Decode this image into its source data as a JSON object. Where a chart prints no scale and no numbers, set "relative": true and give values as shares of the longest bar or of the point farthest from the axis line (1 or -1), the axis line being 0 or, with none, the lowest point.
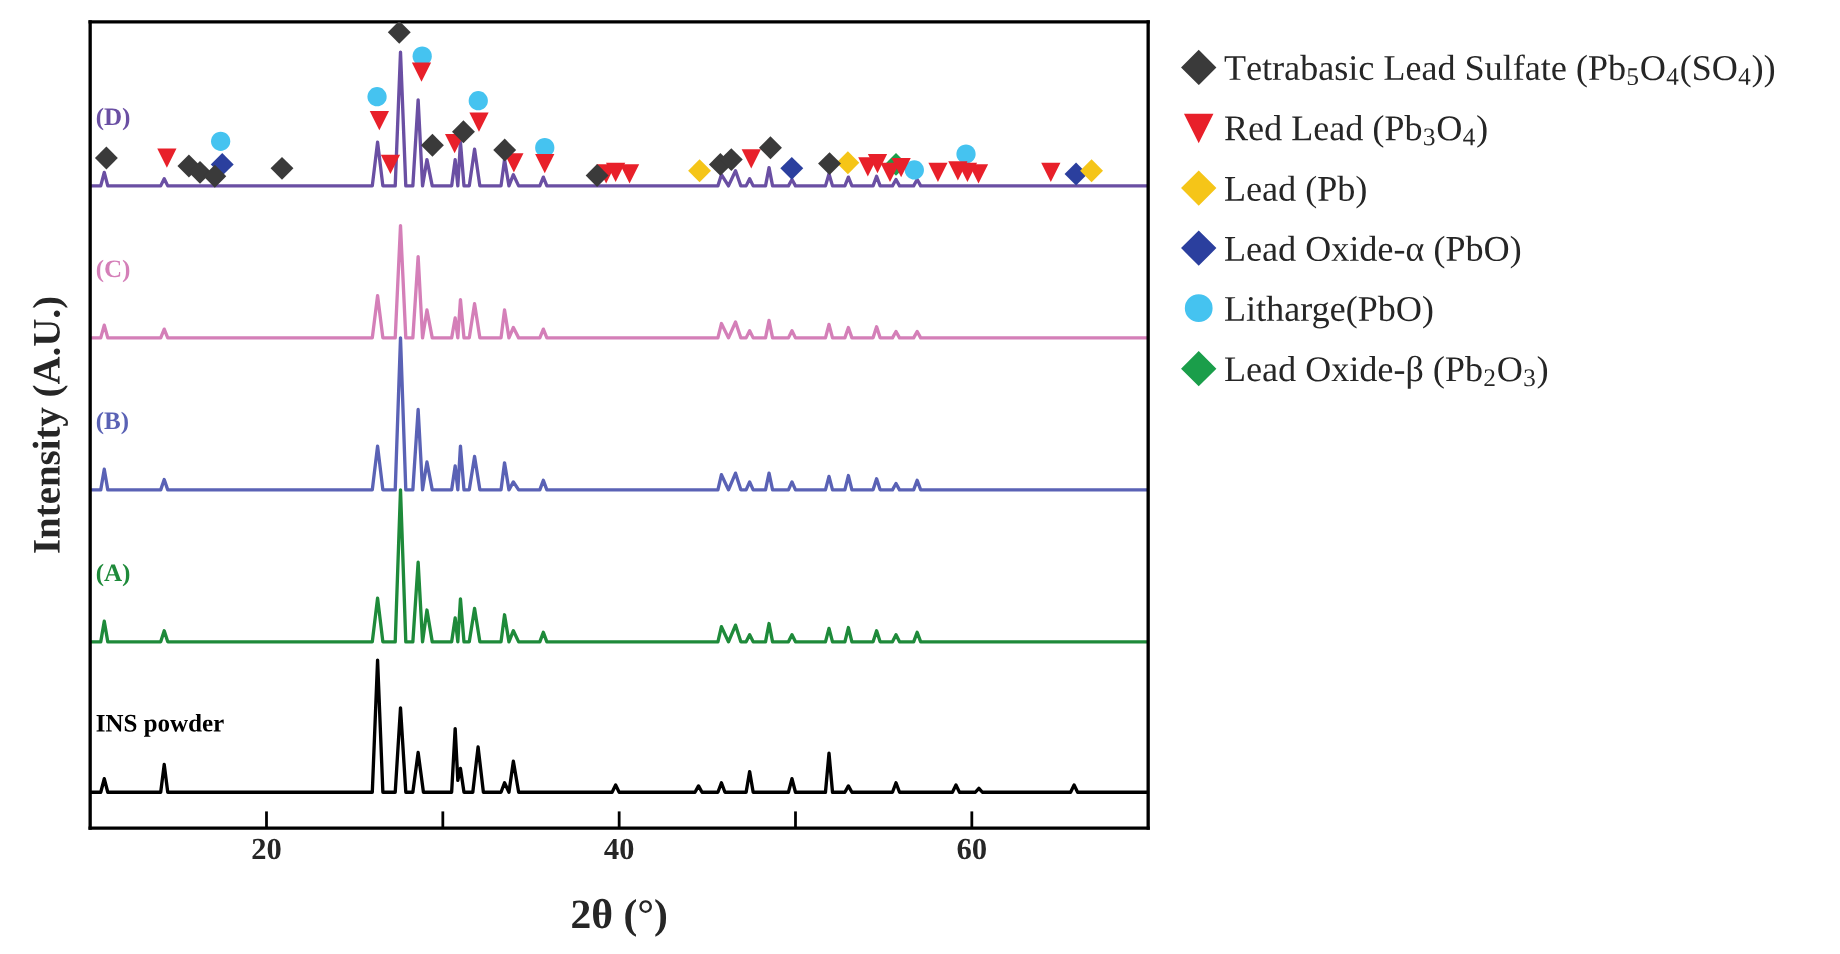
{
  "chart_data": {
    "type": "line",
    "relative": true,
    "xlabel": "2θ (°)",
    "ylabel": "Intensity (A.U.)",
    "xlim": [
      10,
      70
    ],
    "xticks": [
      20,
      {
        "value": 30,
        "label": null
      },
      40,
      {
        "value": 50,
        "label": null
      },
      60
    ],
    "legend": "right",
    "grid": false,
    "x": [
      10,
      10.6,
      10.8,
      11.0,
      14.0,
      14.2,
      14.4,
      26.0,
      26.3,
      26.6,
      27.3,
      27.6,
      27.9,
      28.3,
      28.6,
      28.85,
      29.1,
      29.4,
      30.5,
      30.7,
      30.85,
      31.0,
      31.2,
      31.5,
      31.8,
      32.1,
      33.3,
      33.5,
      33.75,
      34.0,
      34.3,
      35.5,
      35.7,
      35.9,
      45.6,
      45.8,
      46.2,
      46.6,
      46.9,
      47.2,
      47.4,
      47.6,
      48.3,
      48.5,
      48.7,
      49.6,
      49.8,
      50.0,
      51.7,
      51.9,
      52.1,
      52.8,
      53.0,
      53.2,
      54.4,
      54.6,
      54.8,
      55.5,
      55.7,
      55.9,
      56.7,
      56.9,
      57.1,
      70
    ],
    "series": [
      {
        "name": "(D)",
        "color": "#6a4fa3",
        "values": [
          0.807,
          0.807,
          0.824,
          0.807,
          0.807,
          0.816,
          0.807,
          0.807,
          0.862,
          0.807,
          0.807,
          0.975,
          0.807,
          0.807,
          0.915,
          0.807,
          0.84,
          0.807,
          0.807,
          0.84,
          0.807,
          0.862,
          0.807,
          0.807,
          0.853,
          0.807,
          0.807,
          0.84,
          0.807,
          0.821,
          0.807,
          0.807,
          0.818,
          0.807,
          0.807,
          0.821,
          0.807,
          0.826,
          0.807,
          0.807,
          0.816,
          0.807,
          0.807,
          0.83,
          0.807,
          0.807,
          0.815,
          0.807,
          0.807,
          0.822,
          0.807,
          0.807,
          0.818,
          0.807,
          0.807,
          0.819,
          0.807,
          0.807,
          0.815,
          0.807,
          0.807,
          0.815,
          0.807,
          0.807
        ]
      },
      {
        "name": "(C)",
        "color": "#d47fb8",
        "values": [
          0.616,
          0.616,
          0.632,
          0.616,
          0.616,
          0.627,
          0.616,
          0.616,
          0.669,
          0.616,
          0.616,
          0.757,
          0.616,
          0.616,
          0.718,
          0.616,
          0.651,
          0.616,
          0.616,
          0.641,
          0.616,
          0.664,
          0.616,
          0.616,
          0.659,
          0.616,
          0.616,
          0.651,
          0.616,
          0.629,
          0.616,
          0.616,
          0.627,
          0.616,
          0.616,
          0.634,
          0.616,
          0.636,
          0.616,
          0.616,
          0.625,
          0.616,
          0.616,
          0.638,
          0.616,
          0.616,
          0.625,
          0.616,
          0.616,
          0.633,
          0.616,
          0.616,
          0.629,
          0.616,
          0.616,
          0.63,
          0.616,
          0.616,
          0.624,
          0.616,
          0.616,
          0.624,
          0.616,
          0.616
        ]
      },
      {
        "name": "(B)",
        "color": "#5a62b5",
        "values": [
          0.425,
          0.425,
          0.451,
          0.425,
          0.425,
          0.438,
          0.425,
          0.425,
          0.48,
          0.425,
          0.425,
          0.616,
          0.425,
          0.425,
          0.526,
          0.425,
          0.46,
          0.425,
          0.425,
          0.455,
          0.425,
          0.48,
          0.425,
          0.425,
          0.467,
          0.425,
          0.425,
          0.459,
          0.425,
          0.435,
          0.425,
          0.425,
          0.437,
          0.425,
          0.425,
          0.444,
          0.425,
          0.446,
          0.425,
          0.425,
          0.435,
          0.425,
          0.425,
          0.446,
          0.425,
          0.425,
          0.435,
          0.425,
          0.425,
          0.442,
          0.425,
          0.425,
          0.443,
          0.425,
          0.425,
          0.439,
          0.425,
          0.425,
          0.433,
          0.425,
          0.425,
          0.437,
          0.425,
          0.425
        ]
      },
      {
        "name": "(A)",
        "color": "#1e8a3a",
        "values": [
          0.234,
          0.234,
          0.26,
          0.234,
          0.234,
          0.248,
          0.234,
          0.234,
          0.289,
          0.234,
          0.234,
          0.425,
          0.234,
          0.234,
          0.334,
          0.234,
          0.274,
          0.234,
          0.234,
          0.264,
          0.234,
          0.288,
          0.234,
          0.234,
          0.276,
          0.234,
          0.234,
          0.268,
          0.234,
          0.248,
          0.234,
          0.234,
          0.246,
          0.234,
          0.234,
          0.253,
          0.234,
          0.255,
          0.234,
          0.234,
          0.243,
          0.234,
          0.234,
          0.257,
          0.234,
          0.234,
          0.243,
          0.234,
          0.234,
          0.251,
          0.234,
          0.234,
          0.252,
          0.234,
          0.234,
          0.248,
          0.234,
          0.234,
          0.243,
          0.234,
          0.234,
          0.246,
          0.234,
          0.234
        ]
      },
      {
        "name": "INS powder",
        "color": "#000000",
        "x": [
          10,
          10.6,
          10.8,
          11,
          14,
          14.2,
          14.4,
          26,
          26.3,
          26.6,
          27.3,
          27.6,
          27.9,
          28.3,
          28.6,
          28.9,
          30.5,
          30.7,
          30.85,
          31,
          31.2,
          31.7,
          32,
          32.3,
          33.3,
          33.5,
          33.75,
          34,
          34.3,
          39.6,
          39.8,
          40,
          44.3,
          44.5,
          44.7,
          45.6,
          45.8,
          46,
          47.2,
          47.4,
          47.6,
          49.6,
          49.8,
          50,
          51.7,
          51.9,
          52.1,
          52.8,
          53,
          53.2,
          55.5,
          55.7,
          55.9,
          58.9,
          59.1,
          59.3,
          60.2,
          60.4,
          60.6,
          65.6,
          65.8,
          66,
          70
        ],
        "values": [
          0.045,
          0.045,
          0.062,
          0.045,
          0.045,
          0.08,
          0.045,
          0.045,
          0.211,
          0.045,
          0.045,
          0.151,
          0.045,
          0.045,
          0.095,
          0.045,
          0.045,
          0.125,
          0.06,
          0.075,
          0.045,
          0.045,
          0.102,
          0.045,
          0.045,
          0.057,
          0.045,
          0.084,
          0.045,
          0.045,
          0.054,
          0.045,
          0.045,
          0.053,
          0.045,
          0.045,
          0.057,
          0.045,
          0.045,
          0.071,
          0.045,
          0.045,
          0.062,
          0.045,
          0.045,
          0.094,
          0.045,
          0.045,
          0.053,
          0.045,
          0.045,
          0.057,
          0.045,
          0.045,
          0.054,
          0.045,
          0.045,
          0.05,
          0.045,
          0.045,
          0.054,
          0.045,
          0.045
        ]
      },
      {
        "name": "Tetrabasic Lead Sulfate (Pb$_{5}$O$_{4}$(SO$_{4}$))",
        "type": "scatter",
        "marker": "diamond",
        "color": "#3a3a3a",
        "x": [
          10.92,
          15.6,
          16.23,
          17.07,
          20.88,
          27.53,
          29.41,
          31.17,
          33.51,
          38.75,
          45.74,
          46.36,
          48.58,
          51.93
        ],
        "values": [
          0.842,
          0.832,
          0.824,
          0.819,
          0.829,
          1.0,
          0.858,
          0.875,
          0.852,
          0.82,
          0.834,
          0.84,
          0.855,
          0.835
        ]
      },
      {
        "name": "Red Lead (Pb$_{3}$O$_{4}$)",
        "type": "scatter",
        "marker": "triangle",
        "color": "#e8202a",
        "x": [
          14.35,
          26.4,
          27.03,
          28.79,
          30.67,
          32.05,
          34.03,
          35.78,
          39.26,
          39.8,
          40.59,
          47.49,
          54.1,
          54.65,
          55.36,
          55.99,
          58.08,
          59.21,
          59.75,
          60.38,
          64.48
        ],
        "values": [
          0.842,
          0.889,
          0.834,
          0.95,
          0.86,
          0.887,
          0.836,
          0.835,
          0.822,
          0.824,
          0.822,
          0.841,
          0.831,
          0.835,
          0.824,
          0.83,
          0.824,
          0.826,
          0.824,
          0.822,
          0.824
        ]
      },
      {
        "name": "Lead (Pb)",
        "type": "scatter",
        "marker": "diamond",
        "color": "#f5c518",
        "x": [
          44.56,
          52.97,
          66.79
        ],
        "values": [
          0.826,
          0.836,
          0.826
        ]
      },
      {
        "name": "Lead Oxide-α (PbO)",
        "type": "scatter",
        "marker": "diamond",
        "color": "#2b3f9e",
        "x": [
          17.49,
          49.79,
          65.91
        ],
        "values": [
          0.834,
          0.829,
          0.822
        ]
      },
      {
        "name": "Litharge(PbO)",
        "type": "scatter",
        "marker": "circle",
        "color": "#45c3f0",
        "x": [
          17.4,
          26.27,
          28.83,
          32.01,
          35.78,
          56.74,
          59.67
        ],
        "values": [
          0.863,
          0.919,
          0.97,
          0.914,
          0.855,
          0.827,
          0.847
        ]
      },
      {
        "name": "Lead Oxide-β (Pb$_{2}$O$_{3}$)",
        "type": "scatter",
        "marker": "diamond",
        "color": "#1a9e4a",
        "x": [
          55.7
        ],
        "values": [
          0.834
        ]
      }
    ]
  }
}
